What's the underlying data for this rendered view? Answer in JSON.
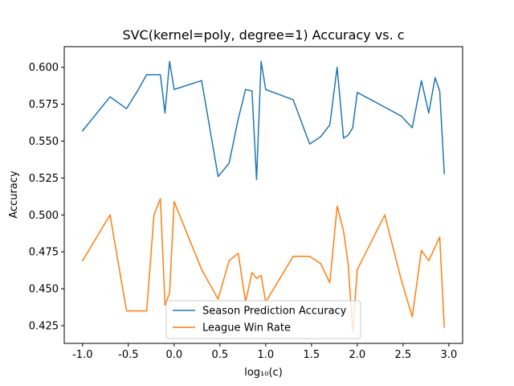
{
  "chart_data": {
    "type": "line",
    "title": "SVC(kernel=poly, degree=1) Accuracy vs. c",
    "xlabel": "log₁₀(c)",
    "ylabel": "Accuracy",
    "xlim": [
      -1.2,
      3.15
    ],
    "ylim": [
      0.413,
      0.614
    ],
    "xticks": [
      "-1.0",
      "-0.5",
      "0.0",
      "0.5",
      "1.0",
      "1.5",
      "2.0",
      "2.5",
      "3.0"
    ],
    "xtick_values": [
      -1.0,
      -0.5,
      0.0,
      0.5,
      1.0,
      1.5,
      2.0,
      2.5,
      3.0
    ],
    "yticks": [
      "0.425",
      "0.450",
      "0.475",
      "0.500",
      "0.525",
      "0.550",
      "0.575",
      "0.600"
    ],
    "ytick_values": [
      0.425,
      0.45,
      0.475,
      0.5,
      0.525,
      0.55,
      0.575,
      0.6
    ],
    "grid": false,
    "legend_position": "lower center",
    "series": [
      {
        "name": "Season Prediction Accuracy",
        "color": "#1f77b4",
        "x": [
          -1.0,
          -0.7,
          -0.52,
          -0.4,
          -0.3,
          -0.15,
          -0.1,
          -0.05,
          0.0,
          0.3,
          0.48,
          0.6,
          0.7,
          0.78,
          0.85,
          0.9,
          0.95,
          1.0,
          1.3,
          1.48,
          1.6,
          1.7,
          1.78,
          1.85,
          1.9,
          1.95,
          2.0,
          2.3,
          2.48,
          2.6,
          2.7,
          2.78,
          2.85,
          2.9,
          2.95
        ],
        "y": [
          0.557,
          0.58,
          0.572,
          0.584,
          0.595,
          0.595,
          0.569,
          0.604,
          0.585,
          0.591,
          0.526,
          0.535,
          0.565,
          0.585,
          0.584,
          0.524,
          0.604,
          0.585,
          0.578,
          0.548,
          0.553,
          0.561,
          0.6,
          0.552,
          0.554,
          0.559,
          0.583,
          0.573,
          0.567,
          0.559,
          0.591,
          0.569,
          0.593,
          0.584,
          0.528
        ]
      },
      {
        "name": "League Win Rate",
        "color": "#ff7f0e",
        "x": [
          -1.0,
          -0.7,
          -0.52,
          -0.4,
          -0.3,
          -0.22,
          -0.15,
          -0.1,
          -0.05,
          0.0,
          0.3,
          0.48,
          0.6,
          0.7,
          0.78,
          0.85,
          0.9,
          0.95,
          1.0,
          1.3,
          1.48,
          1.6,
          1.7,
          1.78,
          1.85,
          1.9,
          1.95,
          2.0,
          2.3,
          2.48,
          2.6,
          2.7,
          2.78,
          2.9,
          2.95
        ],
        "y": [
          0.469,
          0.5,
          0.435,
          0.435,
          0.435,
          0.5,
          0.511,
          0.439,
          0.447,
          0.509,
          0.463,
          0.443,
          0.469,
          0.474,
          0.441,
          0.461,
          0.457,
          0.459,
          0.441,
          0.472,
          0.472,
          0.467,
          0.454,
          0.506,
          0.489,
          0.467,
          0.421,
          0.463,
          0.5,
          0.456,
          0.431,
          0.476,
          0.469,
          0.485,
          0.424
        ]
      }
    ]
  }
}
